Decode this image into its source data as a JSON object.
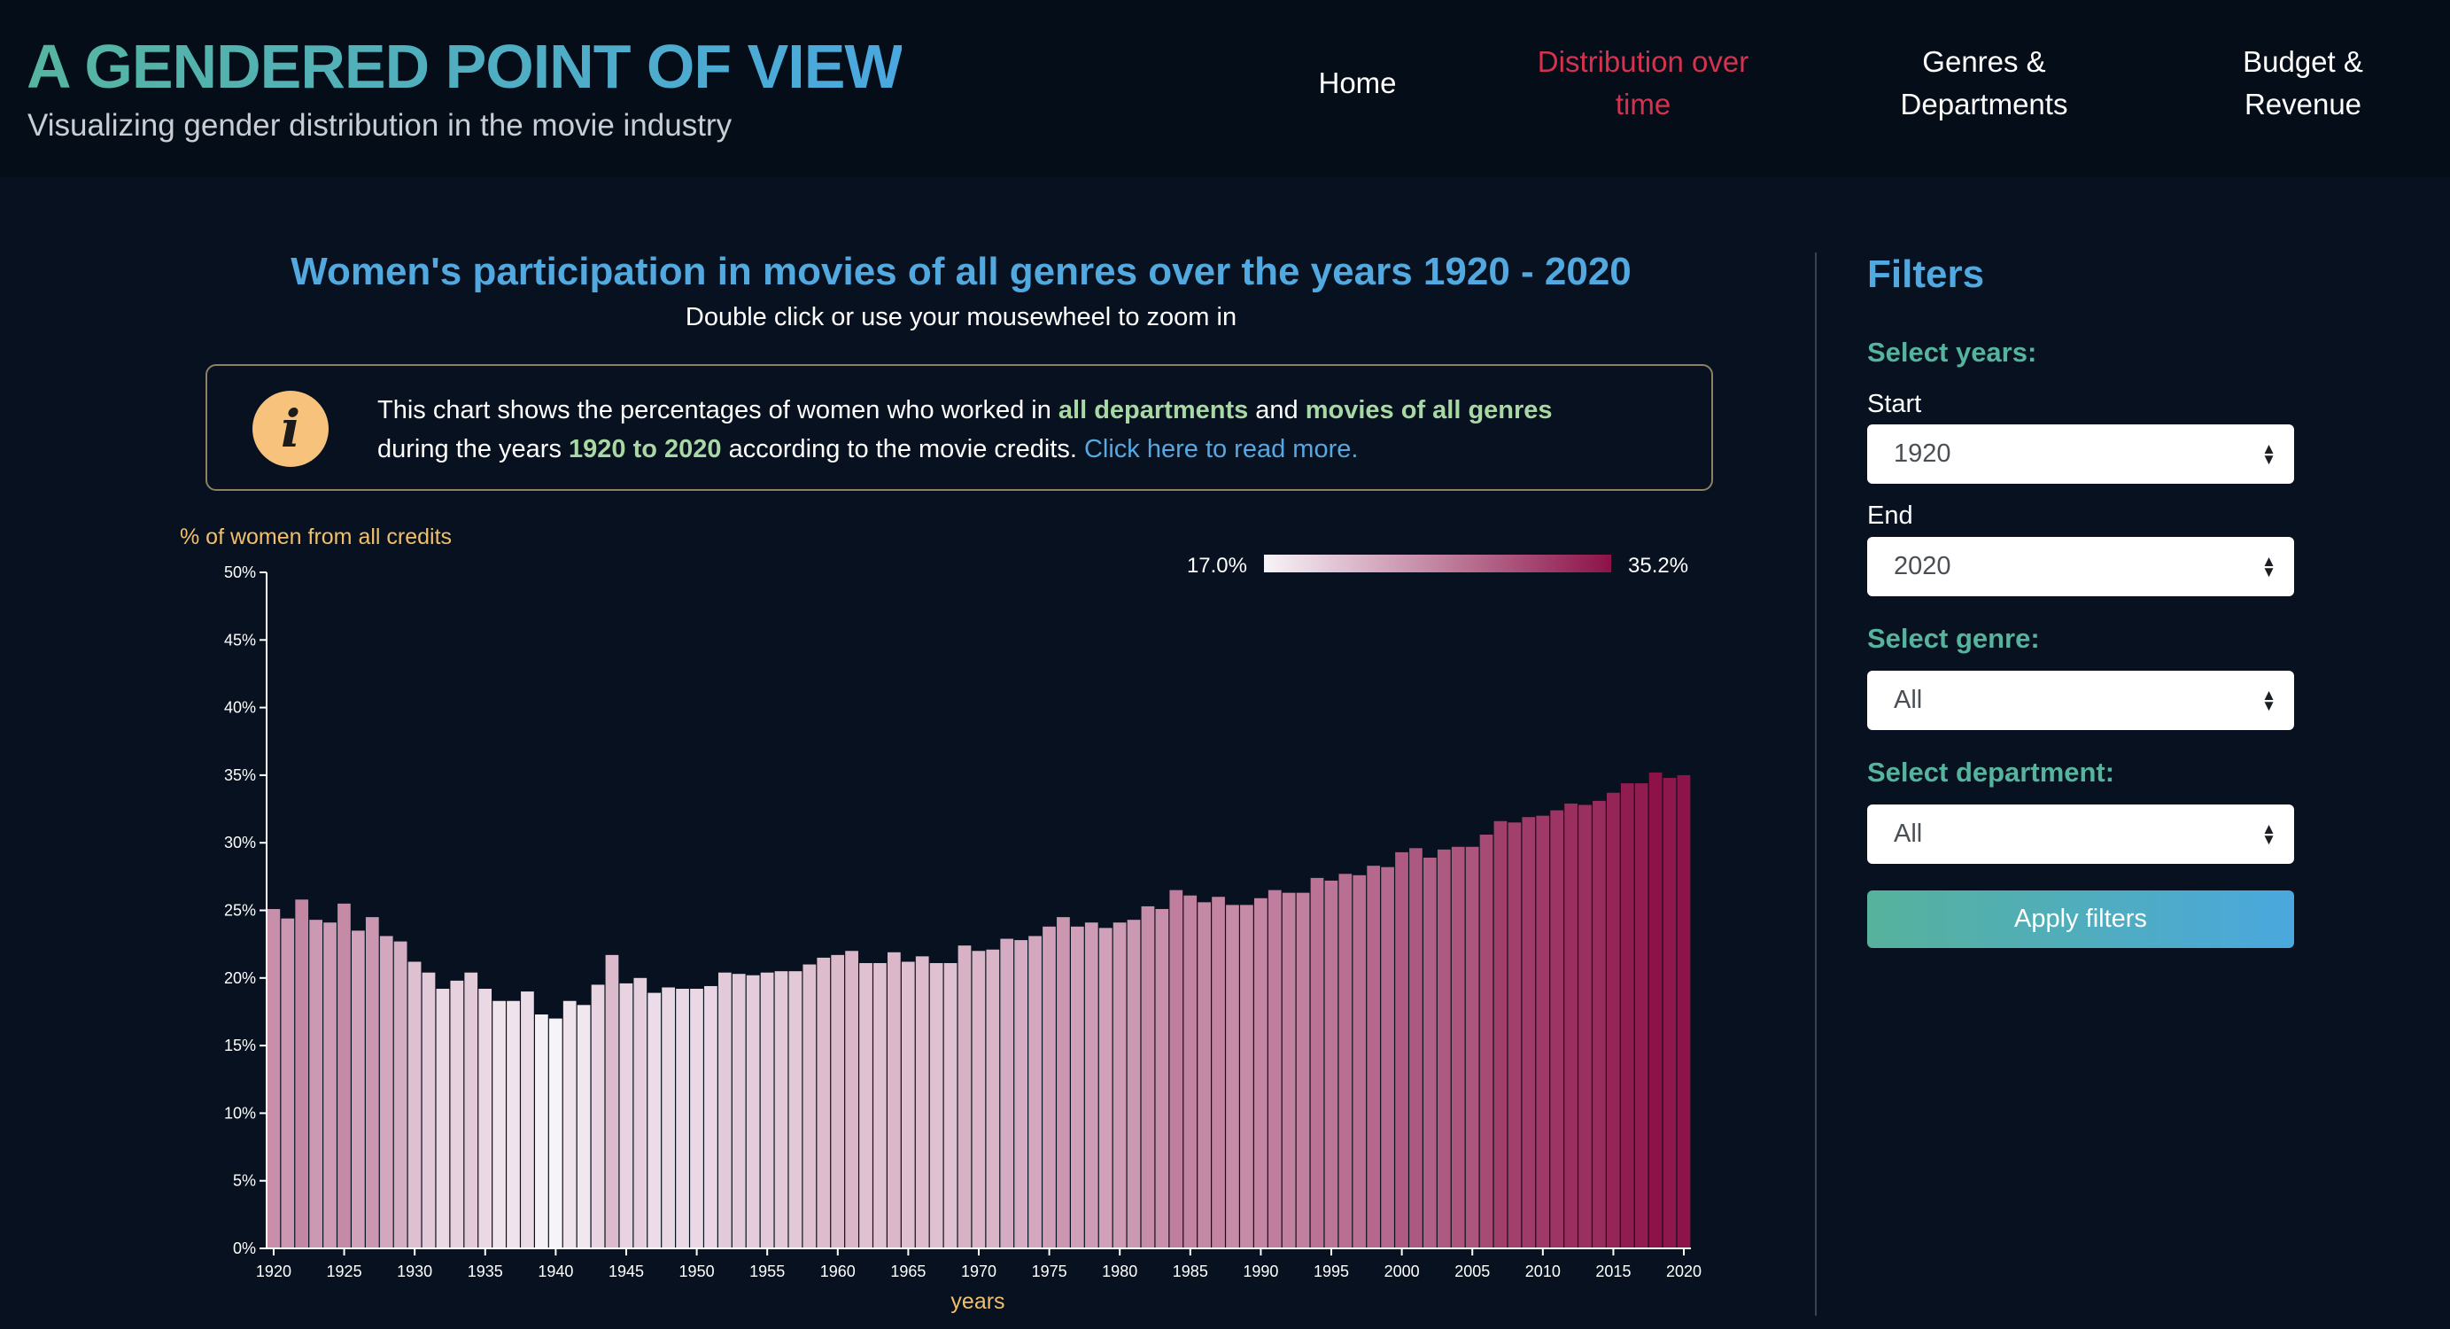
{
  "header": {
    "title": "A GENDERED POINT OF VIEW",
    "subtitle": "Visualizing gender distribution in the movie industry",
    "nav": [
      {
        "label": "Home"
      },
      {
        "label": "Distribution over time"
      },
      {
        "label": "Genres & Departments"
      },
      {
        "label": "Budget & Revenue"
      }
    ]
  },
  "main": {
    "title": "Women's participation in movies of all genres over the years 1920 - 2020",
    "hint": "Double click or use your mousewheel to zoom in",
    "info": {
      "t1": "This chart shows the percentages of women who worked in ",
      "h1": "all departments",
      "t2": " and ",
      "h2": "movies of all genres",
      "t3": "during the years ",
      "h3": "1920 to 2020",
      "t4": " according to the movie credits. ",
      "link": "Click here to read more."
    }
  },
  "chart_data": {
    "type": "bar",
    "ylabel": "% of women from all credits",
    "xlabel": "years",
    "ylim": [
      0,
      50
    ],
    "yticks": [
      "0%",
      "5%",
      "10%",
      "15%",
      "20%",
      "25%",
      "30%",
      "35%",
      "40%",
      "45%",
      "50%"
    ],
    "xticks": [
      "1920",
      "1925",
      "1930",
      "1935",
      "1940",
      "1945",
      "1950",
      "1955",
      "1960",
      "1965",
      "1970",
      "1975",
      "1980",
      "1985",
      "1990",
      "1995",
      "2000",
      "2005",
      "2010",
      "2015",
      "2020"
    ],
    "legend": {
      "min_label": "17.0%",
      "max_label": "35.2%",
      "min": 17.0,
      "max": 35.2,
      "color_low": "#f7f4f9",
      "color_high": "#8c1248"
    },
    "x": [
      1920,
      1921,
      1922,
      1923,
      1924,
      1925,
      1926,
      1927,
      1928,
      1929,
      1930,
      1931,
      1932,
      1933,
      1934,
      1935,
      1936,
      1937,
      1938,
      1939,
      1940,
      1941,
      1942,
      1943,
      1944,
      1945,
      1946,
      1947,
      1948,
      1949,
      1950,
      1951,
      1952,
      1953,
      1954,
      1955,
      1956,
      1957,
      1958,
      1959,
      1960,
      1961,
      1962,
      1963,
      1964,
      1965,
      1966,
      1967,
      1968,
      1969,
      1970,
      1971,
      1972,
      1973,
      1974,
      1975,
      1976,
      1977,
      1978,
      1979,
      1980,
      1981,
      1982,
      1983,
      1984,
      1985,
      1986,
      1987,
      1988,
      1989,
      1990,
      1991,
      1992,
      1993,
      1994,
      1995,
      1996,
      1997,
      1998,
      1999,
      2000,
      2001,
      2002,
      2003,
      2004,
      2005,
      2006,
      2007,
      2008,
      2009,
      2010,
      2011,
      2012,
      2013,
      2014,
      2015,
      2016,
      2017,
      2018,
      2019,
      2020
    ],
    "values": [
      25.1,
      24.4,
      25.8,
      24.3,
      24.1,
      25.5,
      23.5,
      24.5,
      23.1,
      22.7,
      21.2,
      20.4,
      19.2,
      19.8,
      20.4,
      19.2,
      18.3,
      18.3,
      19.0,
      17.3,
      17.0,
      18.3,
      18.0,
      19.5,
      21.7,
      19.6,
      20.0,
      18.9,
      19.3,
      19.2,
      19.2,
      19.4,
      20.4,
      20.3,
      20.2,
      20.4,
      20.5,
      20.5,
      21.0,
      21.5,
      21.7,
      22.0,
      21.1,
      21.1,
      21.9,
      21.2,
      21.6,
      21.1,
      21.1,
      22.4,
      22.0,
      22.1,
      22.9,
      22.8,
      23.1,
      23.8,
      24.5,
      23.8,
      24.1,
      23.7,
      24.1,
      24.3,
      25.3,
      25.1,
      26.5,
      26.1,
      25.6,
      26.0,
      25.4,
      25.4,
      25.9,
      26.5,
      26.3,
      26.3,
      27.4,
      27.2,
      27.7,
      27.6,
      28.3,
      28.2,
      29.3,
      29.6,
      28.9,
      29.5,
      29.7,
      29.7,
      30.6,
      31.6,
      31.5,
      31.9,
      32.0,
      32.4,
      32.9,
      32.8,
      33.1,
      33.7,
      34.4,
      34.4,
      35.2,
      34.8,
      35.0
    ]
  },
  "filters": {
    "title": "Filters",
    "years_label": "Select years:",
    "start_label": "Start",
    "start_value": "1920",
    "end_label": "End",
    "end_value": "2020",
    "genre_label": "Select genre:",
    "genre_value": "All",
    "department_label": "Select department:",
    "department_value": "All",
    "apply_label": "Apply filters"
  }
}
